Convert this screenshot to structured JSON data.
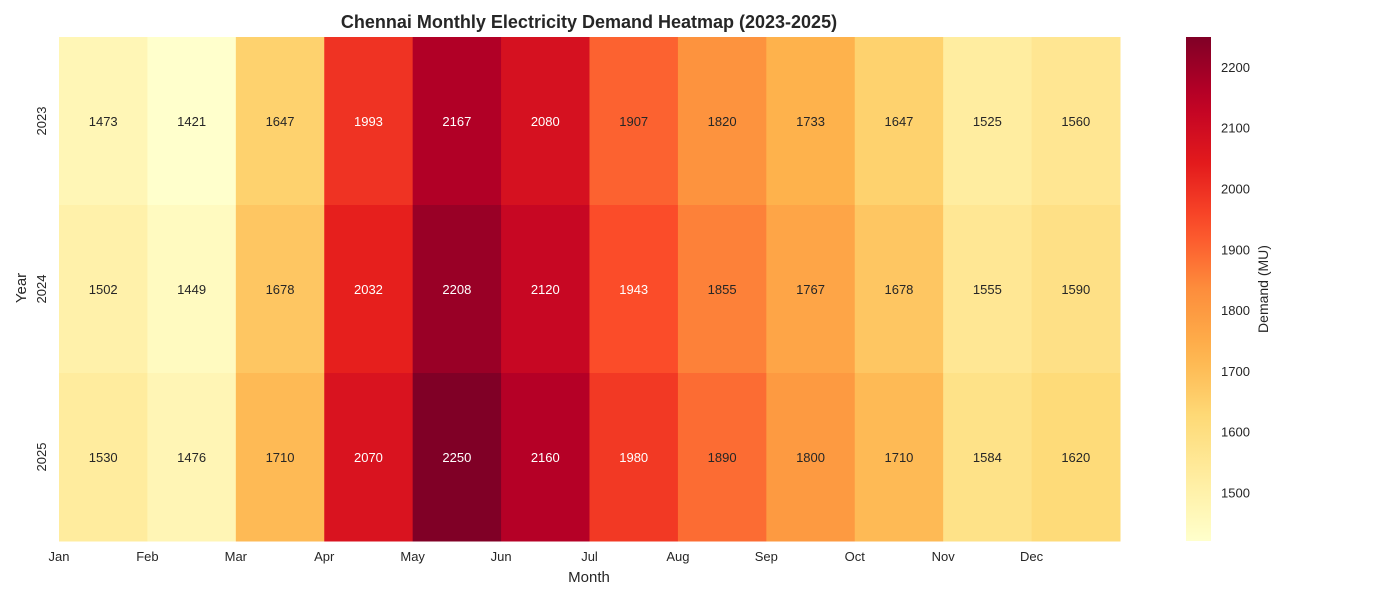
{
  "chart_data": {
    "type": "heatmap",
    "title": "Chennai Monthly Electricity Demand Heatmap (2023-2025)",
    "xlabel": "Month",
    "ylabel": "Year",
    "colorbar_label": "Demand (MU)",
    "x_categories": [
      "Jan",
      "Feb",
      "Mar",
      "Apr",
      "May",
      "Jun",
      "Jul",
      "Aug",
      "Sep",
      "Oct",
      "Nov",
      "Dec"
    ],
    "y_categories": [
      "2023",
      "2024",
      "2025"
    ],
    "values": [
      [
        1473,
        1421,
        1647,
        1993,
        2167,
        2080,
        1907,
        1820,
        1733,
        1647,
        1525,
        1560
      ],
      [
        1502,
        1449,
        1678,
        2032,
        2208,
        2120,
        1943,
        1855,
        1767,
        1678,
        1555,
        1590
      ],
      [
        1530,
        1476,
        1710,
        2070,
        2250,
        2160,
        1980,
        1890,
        1800,
        1710,
        1584,
        1620
      ]
    ],
    "colormap": "YlOrRd",
    "color_range": [
      1421,
      2250
    ],
    "colorbar_ticks": [
      1500,
      1600,
      1700,
      1800,
      1900,
      2000,
      2100,
      2200
    ],
    "annotations": true
  }
}
